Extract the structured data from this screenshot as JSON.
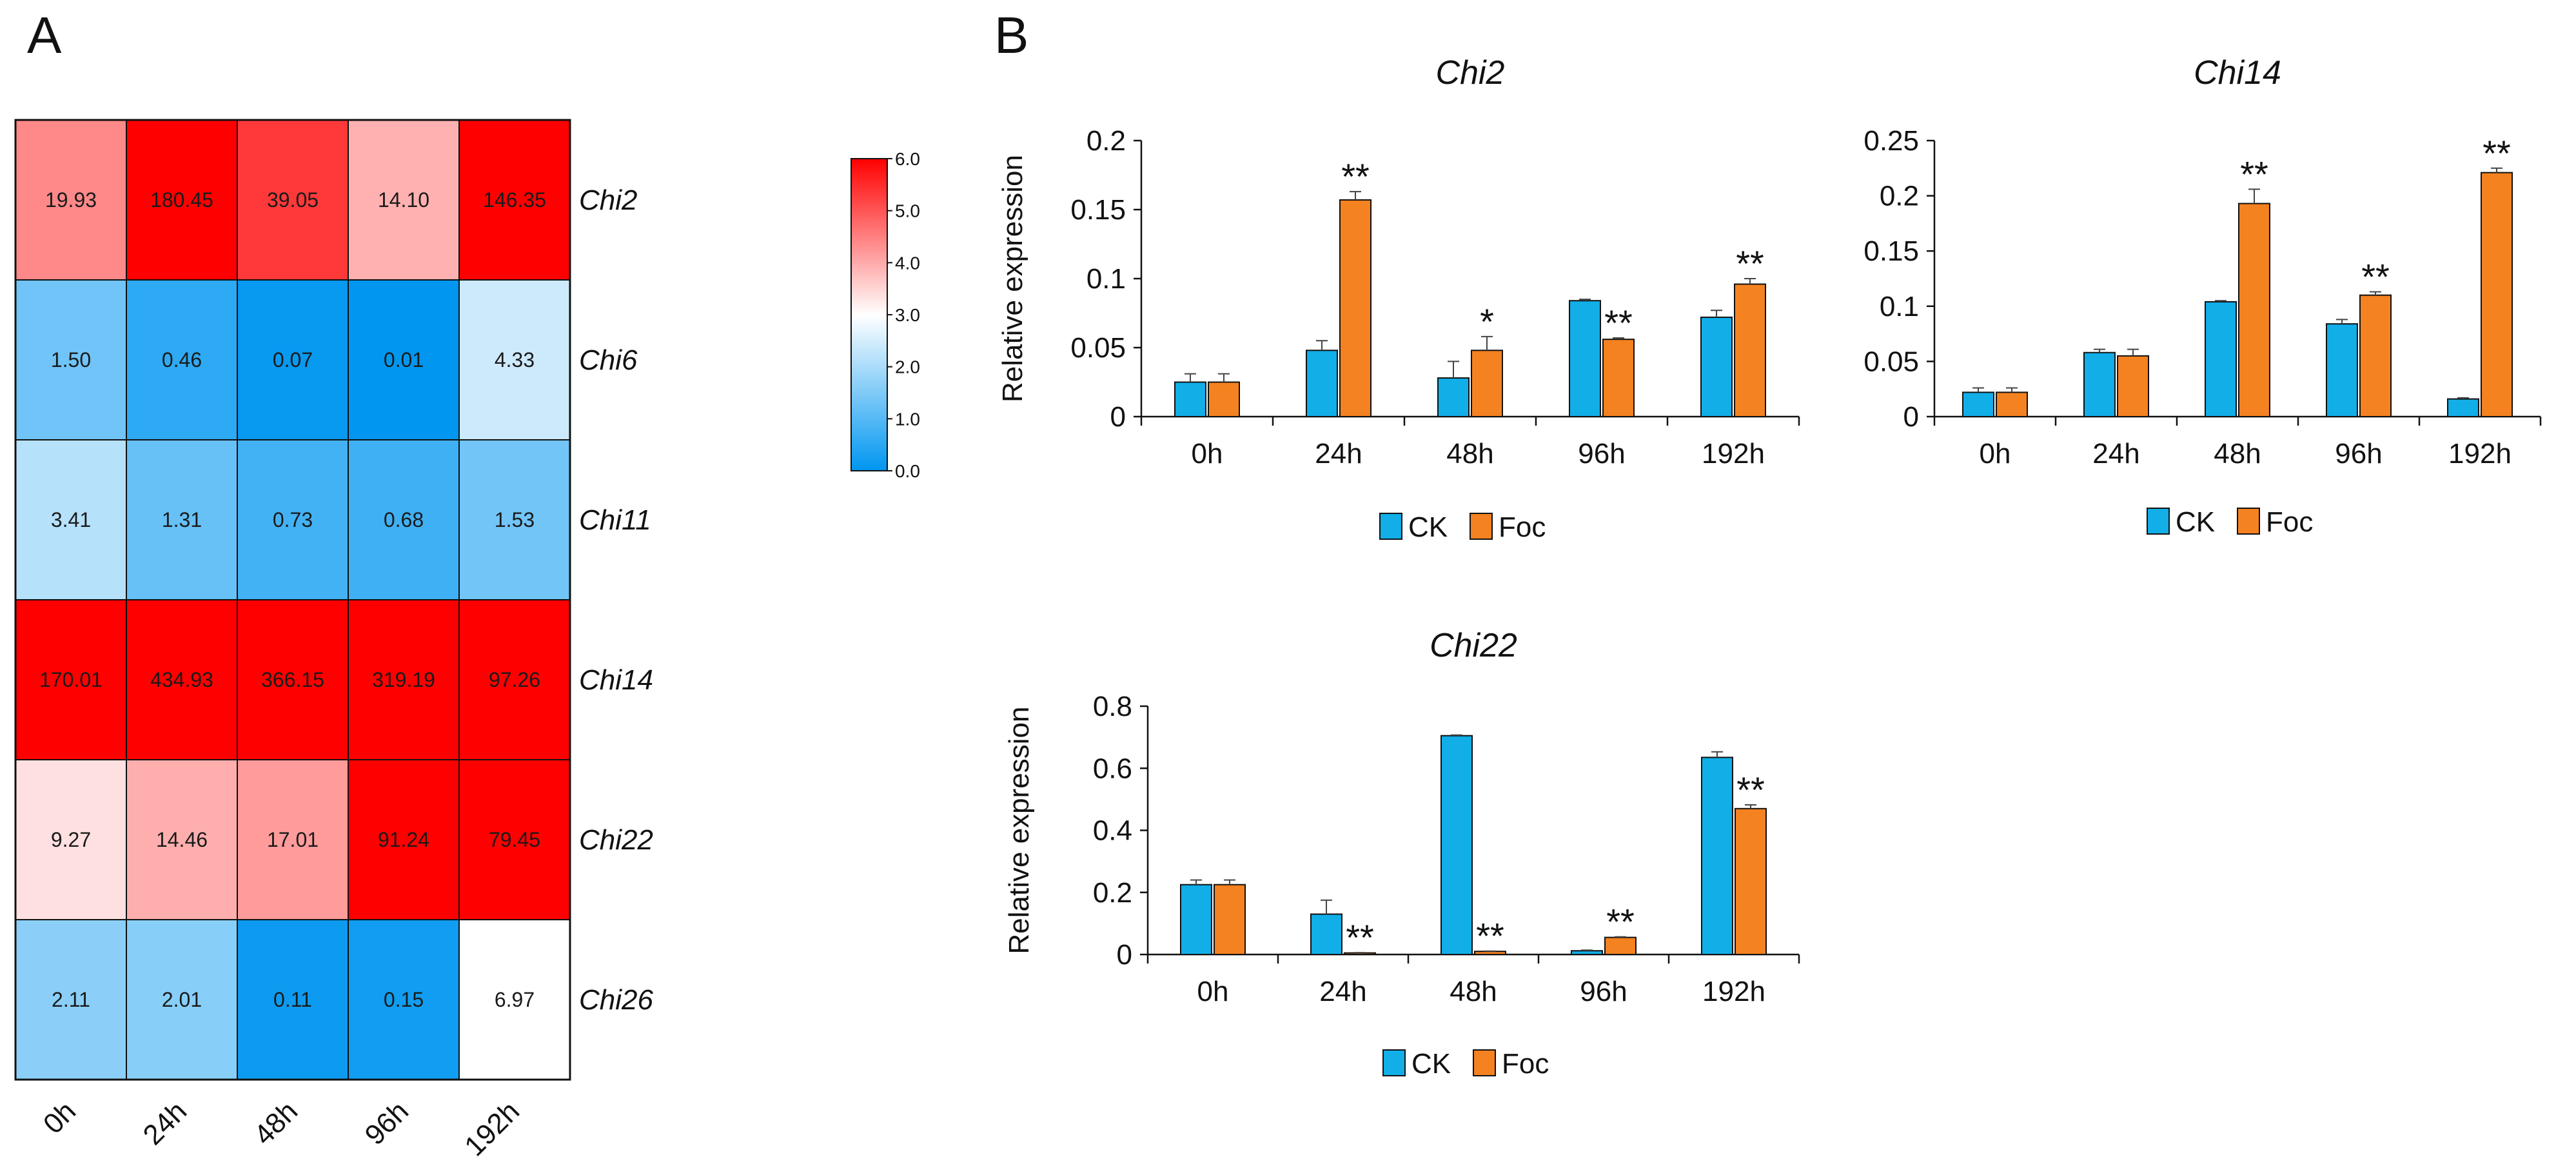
{
  "panels": {
    "a_label": "A",
    "b_label": "B"
  },
  "chart_data": [
    {
      "type": "heatmap",
      "title": "",
      "columns": [
        "0h",
        "24h",
        "48h",
        "96h",
        "192h"
      ],
      "rows": [
        "Chi2",
        "Chi6",
        "Chi11",
        "Chi14",
        "Chi22",
        "Chi26"
      ],
      "values": [
        [
          "19.93",
          "180.45",
          "39.05",
          "14.10",
          "146.35"
        ],
        [
          "1.50",
          "0.46",
          "0.07",
          "0.01",
          "4.33"
        ],
        [
          "3.41",
          "1.31",
          "0.73",
          "0.68",
          "1.53"
        ],
        [
          "170.01",
          "434.93",
          "366.15",
          "319.19",
          "97.26"
        ],
        [
          "9.27",
          "14.46",
          "17.01",
          "91.24",
          "79.45"
        ],
        [
          "2.11",
          "2.01",
          "0.11",
          "0.15",
          "6.97"
        ]
      ],
      "colorbar": {
        "ticks": [
          "0.0",
          "1.0",
          "2.0",
          "3.0",
          "4.0",
          "5.0",
          "6.0"
        ],
        "range": [
          0,
          6
        ],
        "colors": {
          "low": "#0096f0",
          "mid": "#ffffff",
          "high": "#ff0000"
        }
      }
    },
    {
      "type": "bar",
      "title": "Chi2",
      "ylabel": "Relative expression",
      "categories": [
        "0h",
        "24h",
        "48h",
        "96h",
        "192h"
      ],
      "ylim": [
        0,
        0.2
      ],
      "yticks": [
        "0",
        "0.05",
        "0.1",
        "0.15",
        "0.2"
      ],
      "series": [
        {
          "name": "CK",
          "color": "#11aee8",
          "values": [
            0.025,
            0.048,
            0.028,
            0.084,
            0.072
          ],
          "errors": [
            0.006,
            0.007,
            0.012,
            0.001,
            0.005
          ]
        },
        {
          "name": "Foc",
          "color": "#f58220",
          "values": [
            0.025,
            0.157,
            0.048,
            0.056,
            0.096
          ],
          "errors": [
            0.006,
            0.006,
            0.01,
            0.001,
            0.004
          ]
        }
      ],
      "significance": [
        "",
        "**",
        "*",
        "**",
        "**"
      ],
      "legend": [
        "CK",
        "Foc"
      ]
    },
    {
      "type": "bar",
      "title": "Chi14",
      "ylabel": "",
      "categories": [
        "0h",
        "24h",
        "48h",
        "96h",
        "192h"
      ],
      "ylim": [
        0,
        0.25
      ],
      "yticks": [
        "0",
        "0.05",
        "0.1",
        "0.15",
        "0.2",
        "0.25"
      ],
      "series": [
        {
          "name": "CK",
          "color": "#11aee8",
          "values": [
            0.022,
            0.058,
            0.104,
            0.084,
            0.016
          ],
          "errors": [
            0.004,
            0.003,
            0.001,
            0.004,
            0.001
          ]
        },
        {
          "name": "Foc",
          "color": "#f58220",
          "values": [
            0.022,
            0.055,
            0.193,
            0.11,
            0.221
          ],
          "errors": [
            0.004,
            0.006,
            0.013,
            0.003,
            0.004
          ]
        }
      ],
      "significance": [
        "",
        "",
        "**",
        "**",
        "**"
      ],
      "legend": [
        "CK",
        "Foc"
      ]
    },
    {
      "type": "bar",
      "title": "Chi22",
      "ylabel": "Relative expression",
      "categories": [
        "0h",
        "24h",
        "48h",
        "96h",
        "192h"
      ],
      "ylim": [
        0,
        0.8
      ],
      "yticks": [
        "0",
        "0.2",
        "0.4",
        "0.6",
        "0.8"
      ],
      "series": [
        {
          "name": "CK",
          "color": "#11aee8",
          "values": [
            0.225,
            0.13,
            0.705,
            0.012,
            0.635
          ],
          "errors": [
            0.015,
            0.045,
            0.002,
            0.002,
            0.018
          ]
        },
        {
          "name": "Foc",
          "color": "#f58220",
          "values": [
            0.225,
            0.005,
            0.01,
            0.055,
            0.47
          ],
          "errors": [
            0.015,
            0.001,
            0.001,
            0.002,
            0.012
          ]
        }
      ],
      "significance": [
        "",
        "**",
        "**",
        "**",
        "**"
      ],
      "legend": [
        "CK",
        "Foc"
      ]
    }
  ]
}
